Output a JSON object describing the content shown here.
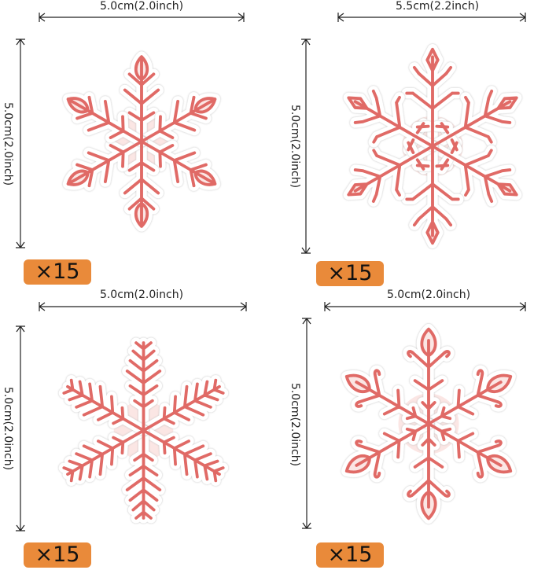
{
  "snowflakes": [
    {
      "width_label": "5.0cm(2.0inch)",
      "height_label": "5.0cm(2.0inch)",
      "quantity": "×15",
      "style": "leafy"
    },
    {
      "width_label": "5.5cm(2.2inch)",
      "height_label": "5.0cm(2.0inch)",
      "quantity": "×15",
      "style": "diamond"
    },
    {
      "width_label": "5.0cm(2.0inch)",
      "height_label": "5.0cm(2.0inch)",
      "quantity": "×15",
      "style": "fern"
    },
    {
      "width_label": "5.0cm(2.0inch)",
      "height_label": "5.0cm(2.0inch)",
      "quantity": "×15",
      "style": "leafy-ornate"
    }
  ],
  "colors": {
    "flake_stroke": "#e06a66",
    "flake_fill": "#fbe6e4",
    "badge": "#e98a3a"
  }
}
